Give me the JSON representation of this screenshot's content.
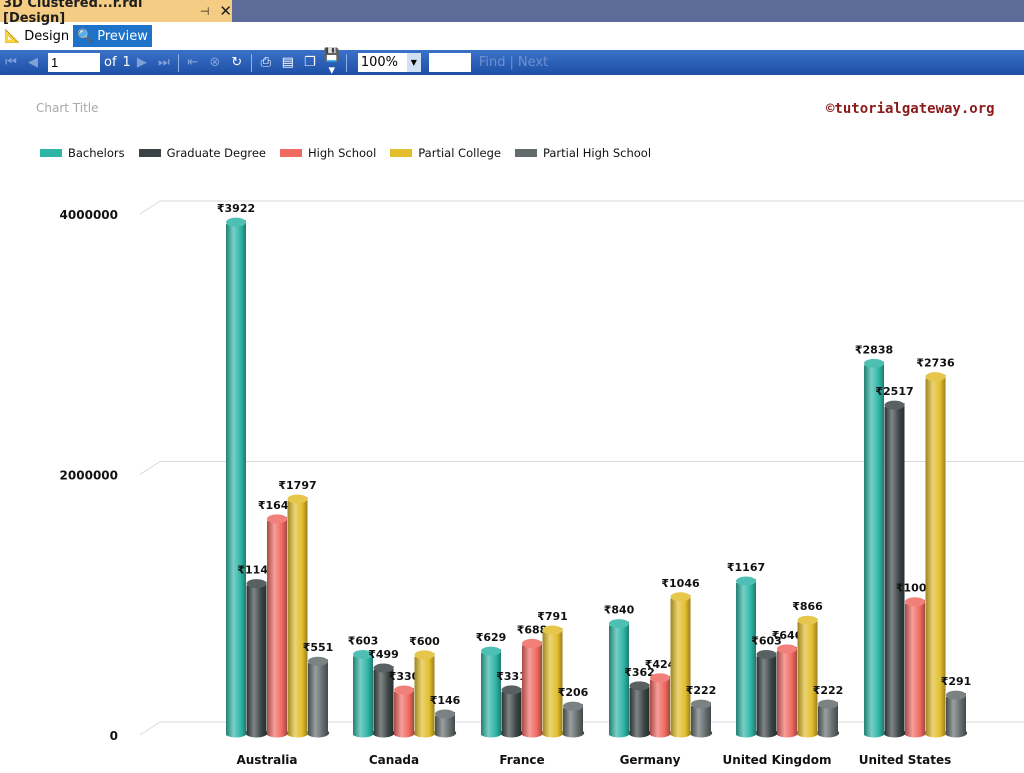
{
  "window": {
    "tab_title": "3D Clustered...r.rdl [Design]",
    "pin_icon": "pin-icon",
    "close_icon": "close-icon"
  },
  "modes": {
    "design": "Design",
    "preview": "Preview",
    "active": "Preview"
  },
  "toolbar": {
    "page": "1",
    "of_label": "of",
    "total_pages": "1",
    "zoom": "100%",
    "find_label": "Find",
    "next_label": "Next"
  },
  "chart_data": {
    "type": "bar",
    "title": "Chart Title",
    "watermark": "©tutorialgateway.org",
    "categories": [
      "Australia",
      "Canada",
      "France",
      "Germany",
      "United Kingdom",
      "United States"
    ],
    "yticks": [
      "0",
      "2000000",
      "4000000"
    ],
    "ylim": [
      0,
      4000000
    ],
    "grid": true,
    "legend": "top-left",
    "series": [
      {
        "name": "Bachelors",
        "color": "#2fb5a6",
        "values": [
          3922000,
          603000,
          629000,
          840000,
          1167000,
          2838000
        ],
        "labels": [
          "₹3922",
          "₹603",
          "₹629",
          "₹840",
          "₹1167",
          "₹2838"
        ]
      },
      {
        "name": "Graduate Degree",
        "color": "#3b4445",
        "values": [
          1147000,
          499000,
          331000,
          362000,
          603000,
          2517000
        ],
        "labels": [
          "₹1147",
          "₹499",
          "₹331",
          "₹362",
          "₹603",
          "₹2517"
        ]
      },
      {
        "name": "High School",
        "color": "#f06a62",
        "values": [
          1644000,
          330000,
          688000,
          424000,
          646000,
          1008000
        ],
        "labels": [
          "₹1644",
          "₹330",
          "₹688",
          "₹424",
          "₹646",
          "₹1008"
        ]
      },
      {
        "name": "Partial College",
        "color": "#e2bd2c",
        "values": [
          1797000,
          600000,
          791000,
          1046000,
          866000,
          2736000
        ],
        "labels": [
          "₹1797",
          "₹600",
          "₹791",
          "₹1046",
          "₹866",
          "₹2736"
        ]
      },
      {
        "name": "Partial High School",
        "color": "#636c6d",
        "values": [
          551000,
          146000,
          206000,
          222000,
          222000,
          291000
        ],
        "labels": [
          "₹551",
          "₹146",
          "₹206",
          "₹222",
          "₹222",
          "₹291"
        ]
      }
    ]
  }
}
